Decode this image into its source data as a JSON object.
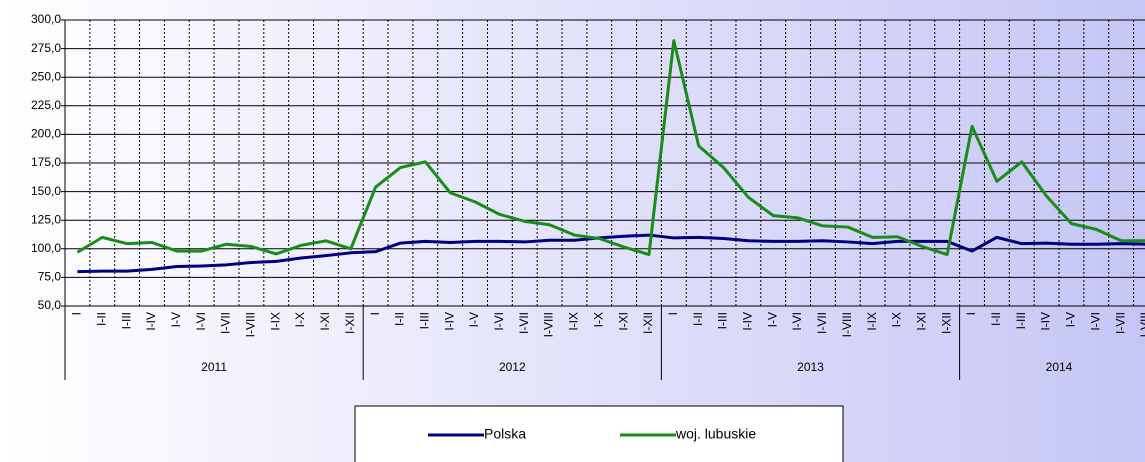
{
  "chart_data": {
    "type": "line",
    "categories": [
      "I",
      "I-II",
      "I-III",
      "I-IV",
      "I-V",
      "I-VI",
      "I-VII",
      "I-VIII",
      "I-IX",
      "I-X",
      "I-XI",
      "I-XII",
      "I",
      "I-II",
      "I-III",
      "I-IV",
      "I-V",
      "I-VI",
      "I-VII",
      "I-VIII",
      "I-IX",
      "I-X",
      "I-XI",
      "I-XII",
      "I",
      "I-II",
      "I-III",
      "I-IV",
      "I-V",
      "I-VI",
      "I-VII",
      "I-VIII",
      "I-IX",
      "I-X",
      "I-XI",
      "I-XII",
      "I",
      "I-II",
      "I-III",
      "I-IV",
      "I-V",
      "I-VI",
      "I-VII",
      "I-VIII"
    ],
    "years": [
      "2011",
      "2012",
      "2013",
      "2014"
    ],
    "series": [
      {
        "name": "Polska",
        "color": "#000080",
        "values": [
          80,
          80.5,
          80.5,
          82,
          84.5,
          85,
          86,
          88,
          89,
          92,
          94,
          96.5,
          97.5,
          105,
          106.5,
          105.5,
          106.5,
          106.5,
          106,
          107.5,
          107.5,
          109.5,
          111,
          112,
          109.5,
          110,
          109,
          107,
          106.5,
          106.5,
          107,
          106,
          104.5,
          106.5,
          106.5,
          106.5,
          98,
          110,
          104.5,
          105,
          104,
          104,
          104.5,
          104
        ]
      },
      {
        "name": "woj. lubuskie",
        "color": "#1a8c1a",
        "values": [
          97,
          110,
          104.5,
          105.5,
          98,
          98,
          104,
          102,
          95.5,
          103,
          107,
          100,
          154,
          171,
          176,
          149,
          141,
          130,
          124,
          121,
          112,
          109,
          101.5,
          95,
          282,
          190,
          171,
          145,
          129,
          127,
          120,
          119,
          110,
          110.5,
          102,
          95,
          207,
          159,
          176,
          146,
          122,
          117,
          107,
          107
        ]
      }
    ],
    "ylim": [
      50,
      300
    ],
    "yticks": [
      {
        "value": 50,
        "label": "50,0"
      },
      {
        "value": 75,
        "label": "75,0"
      },
      {
        "value": 100,
        "label": "100,0"
      },
      {
        "value": 125,
        "label": "125,0"
      },
      {
        "value": 150,
        "label": "150,0"
      },
      {
        "value": 175,
        "label": "175,0"
      },
      {
        "value": 200,
        "label": "200,0"
      },
      {
        "value": 225,
        "label": "225,0"
      },
      {
        "value": 250,
        "label": "250,0"
      },
      {
        "value": 275,
        "label": "275,0"
      },
      {
        "value": 300,
        "label": "300,0"
      }
    ],
    "grid": true
  }
}
